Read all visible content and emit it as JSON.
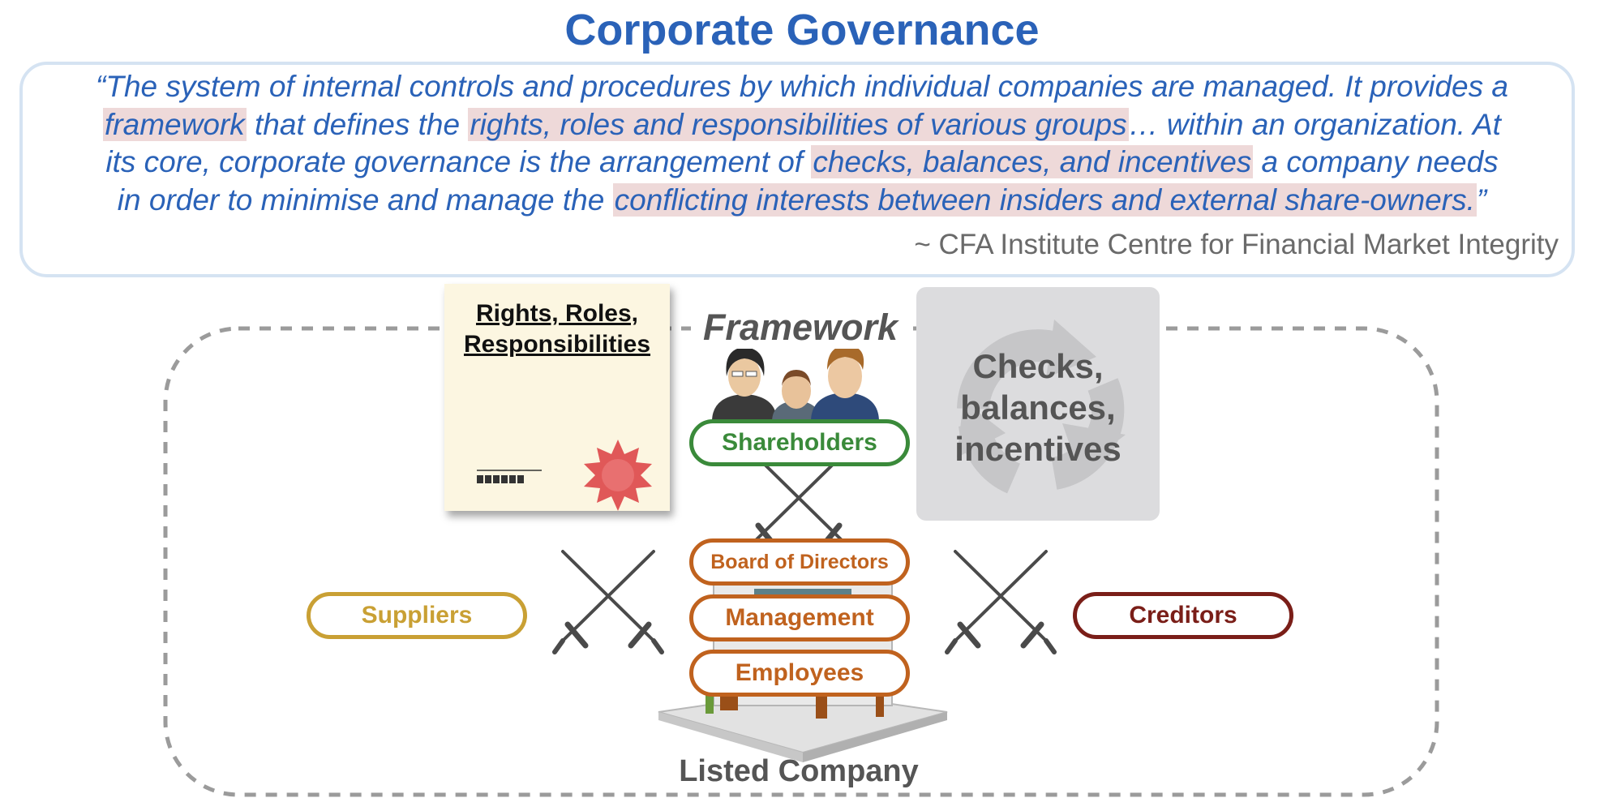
{
  "title": "Corporate Governance",
  "quote": {
    "line1": "“The system of internal controls and procedures by which individual companies are managed. It provides a",
    "line2_hl1": "framework",
    "line2_mid": " that defines the ",
    "line2_hl2": "rights, roles and responsibilities of various groups",
    "line2_end": "… within an organization. At",
    "line3_start": "its core, corporate governance is the arrangement of ",
    "line3_hl": "checks, balances, and incentives",
    "line3_end": " a company needs",
    "line4_start": "in order to minimise and manage the ",
    "line4_hl": "conflicting interests between insiders and external share-owners.",
    "line4_end": "”",
    "attribution": "~ CFA Institute Centre for Financial Market Integrity"
  },
  "diagram": {
    "framework_label": "Framework",
    "certificate_title_line1": "Rights, Roles,",
    "certificate_title_line2": "Responsibilities",
    "checks_line1": "Checks,",
    "checks_line2": "balances,",
    "checks_line3": "incentives",
    "shareholders": "Shareholders",
    "board": "Board of Directors",
    "management": "Management",
    "employees": "Employees",
    "suppliers": "Suppliers",
    "creditors": "Creditors",
    "company_label": "Listed Company",
    "colors": {
      "title": "#2a62b8",
      "shareholders": "#3a8a3a",
      "internal": "#c0621e",
      "suppliers": "#c9a034",
      "creditors": "#7a1e18",
      "highlight": "#eed9d9"
    }
  }
}
